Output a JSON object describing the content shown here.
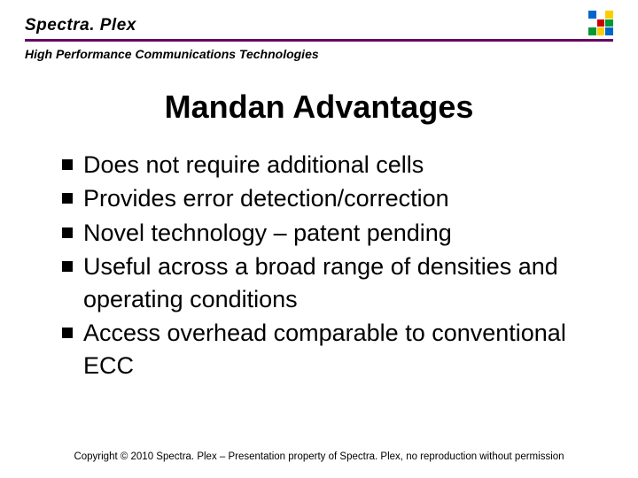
{
  "header": {
    "brand": "Spectra. Plex",
    "tagline": "High Performance Communications Technologies"
  },
  "logo": {
    "cells": [
      "#0066cc",
      "#ffffff",
      "#ffcc00",
      "#ffffff",
      "#cc0000",
      "#009933",
      "#009933",
      "#ffcc00",
      "#0066cc"
    ]
  },
  "title": "Mandan Advantages",
  "bullets": [
    "Does not require additional cells",
    "Provides error detection/correction",
    "Novel technology – patent pending",
    "Useful across a broad range of densities and operating conditions",
    "Access overhead comparable to conventional ECC"
  ],
  "footer": "Copyright © 2010 Spectra. Plex – Presentation property of Spectra. Plex, no reproduction without permission",
  "colors": {
    "rule": "#660066",
    "text": "#000000",
    "background": "#ffffff"
  },
  "typography": {
    "brand_fontsize": 19,
    "tagline_fontsize": 14,
    "title_fontsize": 36,
    "bullet_fontsize": 27,
    "footer_fontsize": 11.5
  }
}
